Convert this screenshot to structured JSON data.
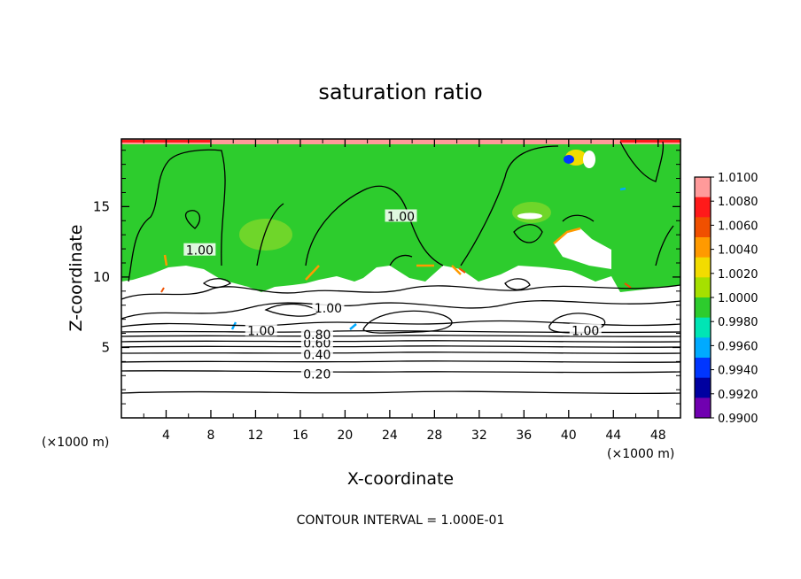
{
  "chart_data": {
    "type": "heatmap",
    "title": "saturation ratio",
    "xlabel": "X-coordinate",
    "ylabel": "Z-coordinate",
    "x_unit_label": "(×1000 m)",
    "z_unit_label": "(×1000 m)",
    "xlim": [
      0,
      50
    ],
    "ylim": [
      0,
      19.8
    ],
    "x_ticks": [
      "4",
      "8",
      "12",
      "16",
      "20",
      "24",
      "28",
      "32",
      "36",
      "40",
      "44",
      "48"
    ],
    "y_ticks": [
      "5",
      "10",
      "15"
    ],
    "footer": "CONTOUR INTERVAL = 1.000E-01",
    "contour_labels": [
      {
        "text": "0.20",
        "x": 17.5,
        "z": 3.1
      },
      {
        "text": "0.40",
        "x": 17.5,
        "z": 4.5
      },
      {
        "text": "0.60",
        "x": 17.5,
        "z": 5.3
      },
      {
        "text": "0.80",
        "x": 17.5,
        "z": 5.9
      },
      {
        "text": "1.00",
        "x": 18.5,
        "z": 7.8
      },
      {
        "text": "1.00",
        "x": 12.5,
        "z": 6.2
      },
      {
        "text": "1.00",
        "x": 41.5,
        "z": 6.2
      },
      {
        "text": "1.00",
        "x": 7.0,
        "z": 11.9
      },
      {
        "text": "1.00",
        "x": 25.0,
        "z": 14.3
      }
    ],
    "colorbar": {
      "labels": [
        "1.0100",
        "1.0080",
        "1.0060",
        "1.0040",
        "1.0020",
        "1.0000",
        "0.9980",
        "0.9960",
        "0.9940",
        "0.9920",
        "0.9900"
      ],
      "colors": [
        "#ff9a9a",
        "#ff1a1a",
        "#f05000",
        "#ff9a00",
        "#f2dc00",
        "#a6e000",
        "#2dcc2d",
        "#00e5b5",
        "#00aaff",
        "#0036ff",
        "#0000a0",
        "#7000b0"
      ]
    }
  }
}
